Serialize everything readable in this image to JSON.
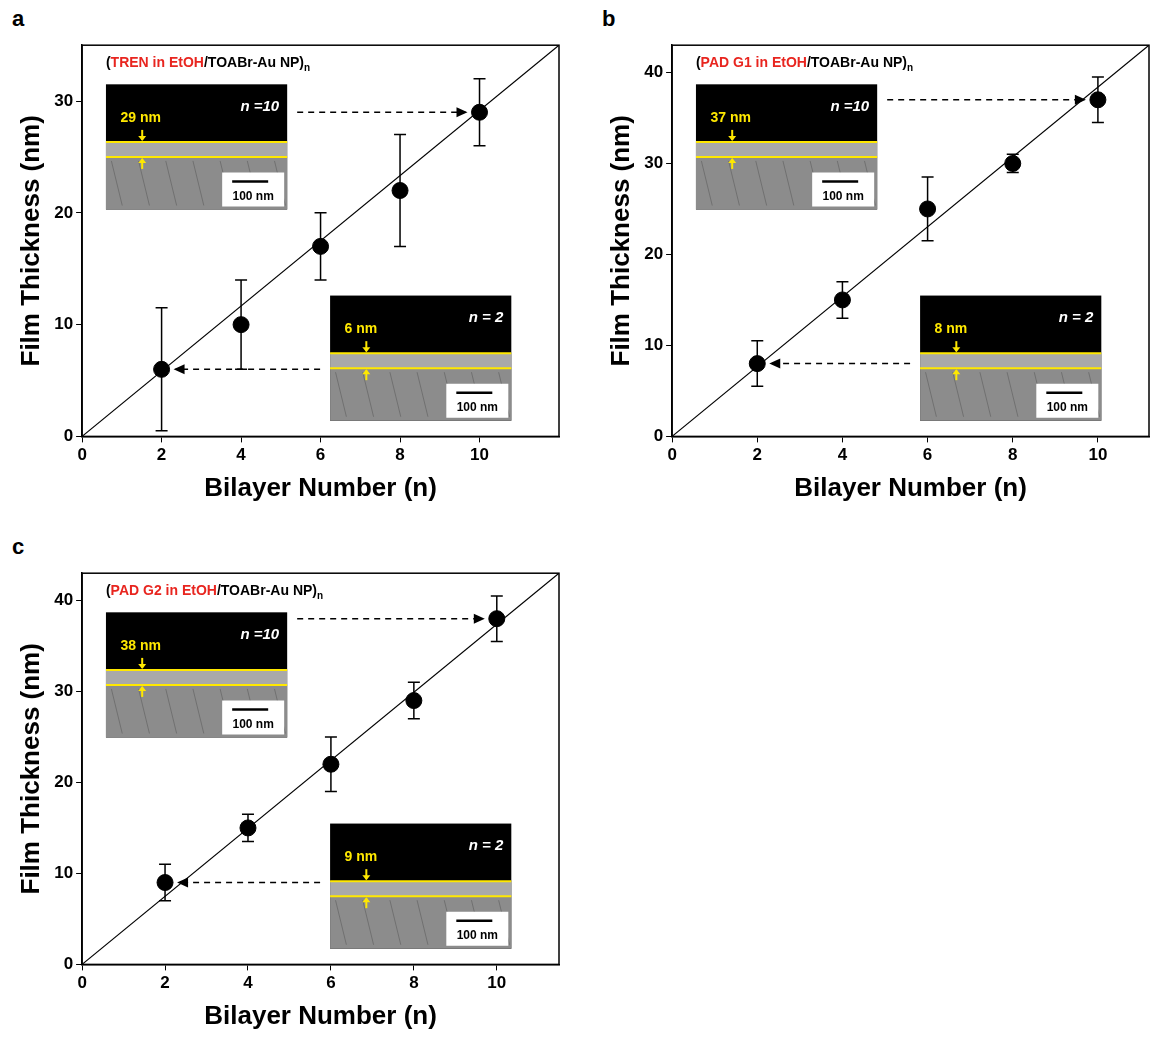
{
  "chart_data": [
    {
      "type": "scatter",
      "panel": "a",
      "title_segments": [
        {
          "text": "(",
          "color": "#000000"
        },
        {
          "text": "TREN in EtOH",
          "color": "#e8251f"
        },
        {
          "text": "/TOABr-Au NP)",
          "color": "#000000"
        },
        {
          "text": "n",
          "color": "#000000",
          "subscript": true
        }
      ],
      "x_label": "Bilayer Number (n)",
      "y_label": "Film Thickness (nm)",
      "x": [
        2,
        4,
        6,
        8,
        10
      ],
      "values": [
        6,
        10,
        17,
        22,
        29
      ],
      "errors": [
        5.5,
        4,
        3,
        5,
        3
      ],
      "color": "#000000",
      "marker": "circle",
      "fit_line": {
        "x": [
          0,
          12
        ],
        "y": [
          0,
          35
        ]
      },
      "xlim": [
        0,
        12
      ],
      "xticks": [
        0,
        2,
        4,
        6,
        8,
        10
      ],
      "ylim": [
        0,
        35
      ],
      "yticks": [
        0,
        10,
        20,
        30
      ],
      "grid": false,
      "insets": [
        {
          "bilayer": 10,
          "thickness_label": "29 nm",
          "n_label": "n =10",
          "scale_label": "100 nm"
        },
        {
          "bilayer": 2,
          "thickness_label": "6 nm",
          "n_label": "n = 2",
          "scale_label": "100 nm"
        }
      ]
    },
    {
      "type": "scatter",
      "panel": "b",
      "title_segments": [
        {
          "text": "(",
          "color": "#000000"
        },
        {
          "text": "PAD G1 in EtOH",
          "color": "#e8251f"
        },
        {
          "text": "/TOABr-Au NP)",
          "color": "#000000"
        },
        {
          "text": "n",
          "color": "#000000",
          "subscript": true
        }
      ],
      "x_label": "Bilayer Number (n)",
      "y_label": "Film Thickness (nm)",
      "x": [
        2,
        4,
        6,
        8,
        10
      ],
      "values": [
        8,
        15,
        25,
        30,
        37
      ],
      "errors": [
        2.5,
        2,
        3.5,
        1,
        2.5
      ],
      "color": "#000000",
      "marker": "circle",
      "fit_line": {
        "x": [
          0,
          11.2
        ],
        "y": [
          0,
          43
        ]
      },
      "xlim": [
        0,
        11.2
      ],
      "xticks": [
        0,
        2,
        4,
        6,
        8,
        10
      ],
      "ylim": [
        0,
        43
      ],
      "yticks": [
        0,
        10,
        20,
        30,
        40
      ],
      "grid": false,
      "insets": [
        {
          "bilayer": 10,
          "thickness_label": "37 nm",
          "n_label": "n =10",
          "scale_label": "100 nm"
        },
        {
          "bilayer": 2,
          "thickness_label": "8 nm",
          "n_label": "n = 2",
          "scale_label": "100 nm"
        }
      ]
    },
    {
      "type": "scatter",
      "panel": "c",
      "title_segments": [
        {
          "text": "(",
          "color": "#000000"
        },
        {
          "text": "PAD G2 in EtOH",
          "color": "#e8251f"
        },
        {
          "text": "/TOABr-Au NP)",
          "color": "#000000"
        },
        {
          "text": "n",
          "color": "#000000",
          "subscript": true
        }
      ],
      "x_label": "Bilayer Number (n)",
      "y_label": "Film Thickness (nm)",
      "x": [
        2,
        4,
        6,
        8,
        10
      ],
      "values": [
        9,
        15,
        22,
        29,
        38
      ],
      "errors": [
        2,
        1.5,
        3,
        2,
        2.5
      ],
      "color": "#000000",
      "marker": "circle",
      "fit_line": {
        "x": [
          0,
          11.5
        ],
        "y": [
          0,
          43
        ]
      },
      "xlim": [
        0,
        11.5
      ],
      "xticks": [
        0,
        2,
        4,
        6,
        8,
        10
      ],
      "ylim": [
        0,
        43
      ],
      "yticks": [
        0,
        10,
        20,
        30,
        40
      ],
      "grid": false,
      "insets": [
        {
          "bilayer": 10,
          "thickness_label": "38 nm",
          "n_label": "n =10",
          "scale_label": "100 nm"
        },
        {
          "bilayer": 2,
          "thickness_label": "9 nm",
          "n_label": "n = 2",
          "scale_label": "100 nm"
        }
      ]
    }
  ]
}
